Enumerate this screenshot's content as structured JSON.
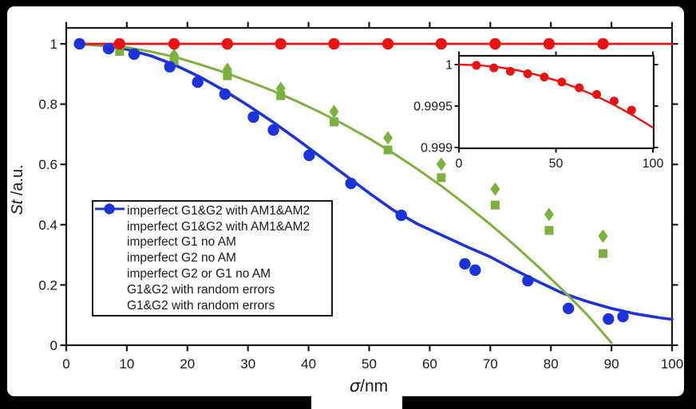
{
  "colors": {
    "red": "#ee1111",
    "green": "#7cb13e",
    "blue": "#1c33d9",
    "axis": "#1a1a1a",
    "text": "#1a1a1a",
    "canvas": "#ffffff",
    "frame": "#000000"
  },
  "axes": {
    "xlabel_symbol": "σ",
    "xlabel_unit": "/nm",
    "ylabel_symbol": "St",
    "ylabel_unit": " /a.u.",
    "x_ticks": [
      0,
      10,
      20,
      30,
      40,
      50,
      60,
      70,
      80,
      90,
      100
    ],
    "y_ticks": [
      0,
      0.2,
      0.4,
      0.6,
      0.8,
      1
    ]
  },
  "chart_data": {
    "type": "line+scatter",
    "title": "",
    "xlabel": "σ/nm",
    "ylabel": "St/a.u.",
    "xlim": [
      0,
      100
    ],
    "ylim": [
      0,
      1
    ],
    "grid": false,
    "legend_position": "center-left",
    "series": [
      {
        "name": "G1&G2 with random errors (fit)",
        "type": "line",
        "color": "blue",
        "width": 3.6,
        "points": [
          [
            2,
            1.0
          ],
          [
            6,
            0.995
          ],
          [
            10,
            0.982
          ],
          [
            14,
            0.96
          ],
          [
            18,
            0.929
          ],
          [
            22,
            0.891
          ],
          [
            26,
            0.846
          ],
          [
            30,
            0.796
          ],
          [
            34,
            0.742
          ],
          [
            38,
            0.685
          ],
          [
            42,
            0.625
          ],
          [
            46,
            0.565
          ],
          [
            50,
            0.505
          ],
          [
            54,
            0.448
          ],
          [
            58,
            0.402
          ],
          [
            62,
            0.365
          ],
          [
            66,
            0.328
          ],
          [
            70,
            0.293
          ],
          [
            74,
            0.25
          ],
          [
            78,
            0.21
          ],
          [
            82,
            0.172
          ],
          [
            86,
            0.145
          ],
          [
            90,
            0.122
          ],
          [
            94,
            0.104
          ],
          [
            98,
            0.091
          ],
          [
            100,
            0.086
          ]
        ]
      },
      {
        "name": "imperfect G2 or G1 no AM",
        "type": "line",
        "color": "green",
        "width": 3,
        "points": [
          [
            2,
            0.999
          ],
          [
            6,
            0.996
          ],
          [
            10,
            0.988
          ],
          [
            14,
            0.974
          ],
          [
            18,
            0.956
          ],
          [
            22,
            0.932
          ],
          [
            26,
            0.906
          ],
          [
            30,
            0.876
          ],
          [
            34,
            0.845
          ],
          [
            38,
            0.81
          ],
          [
            42,
            0.772
          ],
          [
            46,
            0.731
          ],
          [
            50,
            0.686
          ],
          [
            54,
            0.637
          ],
          [
            58,
            0.584
          ],
          [
            62,
            0.527
          ],
          [
            66,
            0.466
          ],
          [
            70,
            0.401
          ],
          [
            74,
            0.332
          ],
          [
            78,
            0.259
          ],
          [
            82,
            0.182
          ],
          [
            86,
            0.101
          ],
          [
            90,
            0.008
          ]
        ]
      },
      {
        "name": "imperfect G1&G2 with AM1&AM2 (fit)",
        "type": "line",
        "color": "red",
        "width": 2.8,
        "points": [
          [
            1.5,
            1.0
          ],
          [
            100,
            1.0
          ]
        ]
      },
      {
        "name": "imperfect G1 no AM",
        "type": "scatter",
        "marker": "square",
        "color": "green",
        "x": [
          8.8,
          17.8,
          26.6,
          35.4,
          44.2,
          53.1,
          61.9,
          70.8,
          79.7,
          88.6
        ],
        "y": [
          0.975,
          0.944,
          0.894,
          0.828,
          0.741,
          0.648,
          0.556,
          0.465,
          0.381,
          0.304
        ]
      },
      {
        "name": "imperfect G2 no AM",
        "type": "scatter",
        "marker": "diamond",
        "color": "green",
        "x": [
          8.8,
          17.8,
          26.6,
          35.4,
          44.2,
          53.1,
          61.9,
          70.8,
          79.7,
          88.6
        ],
        "y": [
          0.99,
          0.962,
          0.915,
          0.852,
          0.775,
          0.688,
          0.601,
          0.518,
          0.434,
          0.362
        ]
      },
      {
        "name": "imperfect G1&G2 with AM1&AM2",
        "type": "scatter",
        "marker": "circle",
        "color": "red",
        "x": [
          8.8,
          17.8,
          26.6,
          35.4,
          44.2,
          53.1,
          61.9,
          70.8,
          79.7,
          88.6
        ],
        "y": [
          1,
          1,
          1,
          1,
          1,
          1,
          1,
          1,
          1,
          1
        ]
      },
      {
        "name": "G1&G2 with random errors",
        "type": "scatter",
        "marker": "circle",
        "color": "blue",
        "x": [
          2.2,
          7.0,
          11.2,
          17.1,
          21.7,
          26.2,
          30.9,
          34.2,
          40.1,
          47.0,
          55.3,
          65.8,
          67.5,
          76.2,
          82.9,
          89.5,
          91.9
        ],
        "y": [
          1.0,
          0.984,
          0.966,
          0.924,
          0.873,
          0.833,
          0.757,
          0.714,
          0.63,
          0.537,
          0.431,
          0.27,
          0.249,
          0.214,
          0.122,
          0.087,
          0.095
        ]
      }
    ],
    "inset": {
      "xlim": [
        0,
        100
      ],
      "ylim": [
        0.999,
        1.0001
      ],
      "x_ticks": [
        0,
        50,
        100
      ],
      "y_ticks": [
        1,
        0.9995,
        0.999
      ],
      "y_tick_labels": [
        "1",
        "0.9995",
        "0.999"
      ],
      "series": [
        {
          "name": "imperfect G1&G2 with AM1&AM2 (fit, zoom)",
          "type": "line",
          "color": "red",
          "width": 2.4,
          "points": [
            [
              0,
              1.0
            ],
            [
              10,
              0.999992
            ],
            [
              20,
              0.99997
            ],
            [
              30,
              0.999932
            ],
            [
              40,
              0.999878
            ],
            [
              50,
              0.99981
            ],
            [
              60,
              0.999726
            ],
            [
              70,
              0.999628
            ],
            [
              80,
              0.999514
            ],
            [
              90,
              0.999384
            ],
            [
              100,
              0.99924
            ]
          ]
        },
        {
          "name": "imperfect G1&G2 with AM1&AM2 (zoom)",
          "type": "scatter",
          "marker": "circle",
          "color": "red",
          "x": [
            9,
            18,
            26.5,
            35.5,
            44,
            53,
            62,
            71,
            80,
            89
          ],
          "y": [
            0.99999,
            0.99996,
            0.99992,
            0.99989,
            0.99985,
            0.99979,
            0.99972,
            0.99964,
            0.99956,
            0.99945
          ]
        }
      ]
    }
  },
  "legend": {
    "entries": [
      {
        "marker": "circle",
        "color": "red",
        "label": "imperfect G1&G2 with AM1&AM2"
      },
      {
        "marker": "line",
        "color": "red",
        "label": "imperfect G1&G2 with AM1&AM2"
      },
      {
        "marker": "square",
        "color": "green",
        "label": "imperfect G1 no AM"
      },
      {
        "marker": "diamond",
        "color": "green",
        "label": "imperfect G2 no AM"
      },
      {
        "marker": "line",
        "color": "green",
        "label": "imperfect G2 or G1 no AM"
      },
      {
        "marker": "circle",
        "color": "blue",
        "label": "G1&G2 with random errors"
      },
      {
        "marker": "line",
        "color": "blue",
        "label": "G1&G2 with random errors"
      }
    ]
  }
}
